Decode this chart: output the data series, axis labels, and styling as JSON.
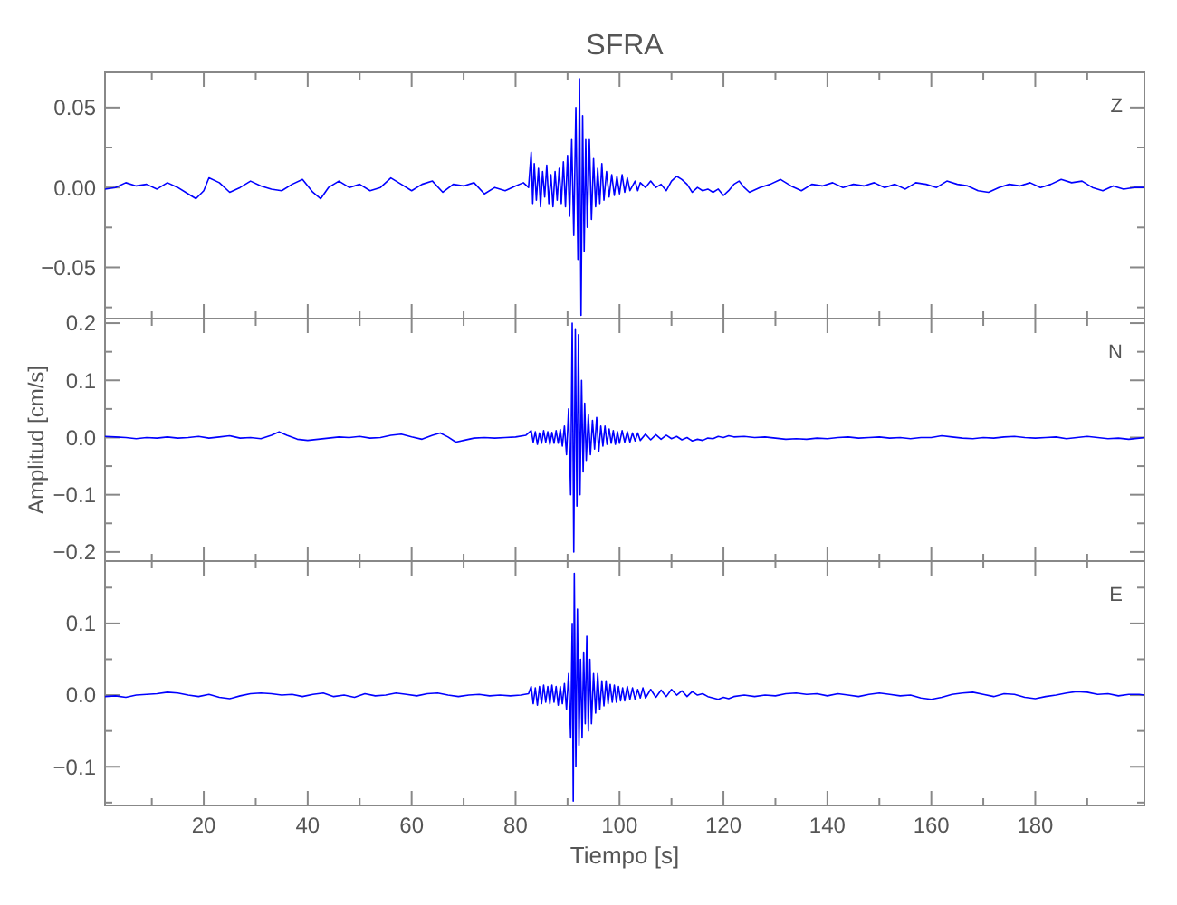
{
  "chart_data": [
    {
      "type": "line",
      "title": "SFRA",
      "annotations": [
        "Z"
      ],
      "xlim": [
        1,
        201
      ],
      "ylim": [
        -0.082,
        0.072
      ],
      "xticks": [
        {
          "value": 10,
          "label": null
        },
        20,
        {
          "value": 30,
          "label": null
        },
        40,
        {
          "value": 50,
          "label": null
        },
        60,
        {
          "value": 70,
          "label": null
        },
        80,
        {
          "value": 90,
          "label": null
        },
        100,
        {
          "value": 110,
          "label": null
        },
        120,
        {
          "value": 130,
          "label": null
        },
        140,
        {
          "value": 150,
          "label": null
        },
        160,
        {
          "value": 170,
          "label": null
        },
        180,
        {
          "value": 190,
          "label": null
        }
      ],
      "yticks": [
        {
          "value": -0.075,
          "label": null
        },
        {
          "value": -0.05,
          "label": "−0.05"
        },
        {
          "value": -0.025,
          "label": null
        },
        {
          "value": 0,
          "label": "0.00"
        },
        {
          "value": 0.025,
          "label": null
        },
        0.05
      ],
      "tick_labels": "y",
      "series": [
        {
          "color": "#0000ff",
          "x": [
            1,
            3,
            5,
            7,
            9,
            11,
            13,
            15,
            17,
            18.5,
            20,
            21,
            23,
            25,
            27,
            29,
            31,
            33,
            35,
            37,
            39,
            41,
            42.5,
            44,
            46,
            48,
            50,
            52,
            54,
            56,
            58,
            60,
            62,
            64,
            66,
            68,
            70,
            72,
            74,
            76,
            78,
            80,
            81.5,
            82.5,
            83,
            83.3,
            83.6,
            84,
            84.4,
            84.8,
            85.2,
            85.6,
            86,
            86.4,
            86.8,
            87.2,
            87.6,
            88,
            88.4,
            88.8,
            89.2,
            89.6,
            90,
            90.4,
            90.8,
            91.2,
            91.6,
            92,
            92.3,
            92.6,
            92.9,
            93.2,
            93.5,
            93.8,
            94.2,
            94.6,
            95,
            95.4,
            95.8,
            96.2,
            96.6,
            97,
            97.5,
            98,
            98.5,
            99,
            99.5,
            100,
            100.5,
            101,
            101.5,
            102,
            103,
            103.5,
            104,
            105,
            106,
            107,
            108,
            109,
            110,
            111,
            112,
            113,
            114,
            115,
            116,
            117,
            118,
            119,
            120,
            121,
            122,
            123,
            124,
            125,
            127,
            129,
            131,
            133,
            135,
            137,
            139,
            141,
            143,
            145,
            147,
            149,
            151,
            153,
            155,
            157,
            159,
            161,
            163,
            165,
            167,
            169,
            171,
            173,
            175,
            177,
            179,
            181,
            183,
            185,
            187,
            189,
            191,
            193,
            195,
            197,
            199,
            201
          ],
          "values": [
            -0.001,
            0.0,
            0.003,
            0.001,
            0.002,
            -0.001,
            0.003,
            0.0,
            -0.004,
            -0.007,
            -0.002,
            0.006,
            0.003,
            -0.003,
            0.0,
            0.004,
            0.001,
            -0.001,
            -0.002,
            0.002,
            0.005,
            -0.003,
            -0.007,
            0.0,
            0.004,
            0.0,
            0.002,
            -0.002,
            0.0,
            0.006,
            0.002,
            -0.002,
            0.002,
            0.004,
            -0.003,
            0.002,
            0.001,
            0.003,
            -0.004,
            0.0,
            -0.002,
            0.001,
            0.003,
            0.0,
            0.022,
            -0.01,
            0.015,
            -0.008,
            0.012,
            -0.012,
            0.01,
            -0.006,
            0.014,
            -0.01,
            0.008,
            -0.012,
            0.01,
            -0.008,
            0.012,
            -0.01,
            0.016,
            -0.012,
            0.02,
            -0.018,
            0.03,
            -0.03,
            0.05,
            -0.045,
            0.068,
            -0.08,
            0.045,
            -0.04,
            0.03,
            -0.025,
            0.03,
            -0.02,
            0.018,
            -0.012,
            0.012,
            -0.01,
            0.015,
            -0.008,
            0.01,
            -0.006,
            0.008,
            -0.005,
            0.007,
            -0.004,
            0.008,
            -0.003,
            0.006,
            -0.002,
            0.004,
            -0.002,
            0.003,
            0.0,
            0.004,
            0.0,
            0.002,
            -0.002,
            0.004,
            0.007,
            0.005,
            0.002,
            -0.003,
            0.0,
            -0.002,
            -0.001,
            -0.003,
            -0.001,
            -0.005,
            -0.002,
            0.002,
            0.004,
            0.0,
            -0.003,
            0.0,
            0.002,
            0.005,
            0.001,
            -0.002,
            0.002,
            0.001,
            0.003,
            0.0,
            0.002,
            0.001,
            0.003,
            0.0,
            0.002,
            -0.001,
            0.003,
            0.002,
            0.0,
            0.004,
            0.002,
            0.001,
            -0.002,
            -0.003,
            0.0,
            0.002,
            0.001,
            0.003,
            0.0,
            0.002,
            0.005,
            0.003,
            0.004,
            0.0,
            -0.002,
            0.001,
            -0.001,
            0.0,
            0.0
          ]
        }
      ]
    },
    {
      "type": "line",
      "ylabel": "Amplitud [cm/s]",
      "annotations": [
        "N"
      ],
      "xlim": [
        1,
        201
      ],
      "ylim": [
        -0.216,
        0.208
      ],
      "xticks": [
        {
          "value": 10,
          "label": null
        },
        20,
        {
          "value": 30,
          "label": null
        },
        40,
        {
          "value": 50,
          "label": null
        },
        60,
        {
          "value": 70,
          "label": null
        },
        80,
        {
          "value": 90,
          "label": null
        },
        100,
        {
          "value": 110,
          "label": null
        },
        120,
        {
          "value": 130,
          "label": null
        },
        140,
        {
          "value": 150,
          "label": null
        },
        160,
        {
          "value": 170,
          "label": null
        },
        180,
        {
          "value": 190,
          "label": null
        }
      ],
      "yticks": [
        {
          "value": -0.2,
          "label": "−0.2"
        },
        {
          "value": -0.15,
          "label": null
        },
        {
          "value": -0.1,
          "label": "−0.1"
        },
        {
          "value": -0.05,
          "label": null
        },
        {
          "value": 0,
          "label": "0.0"
        },
        {
          "value": 0.05,
          "label": null
        },
        0.1,
        {
          "value": 0.15,
          "label": null
        },
        0.2
      ],
      "tick_labels": "y",
      "series": [
        {
          "color": "#0000ff",
          "x": [
            1,
            3,
            5,
            7,
            9,
            11,
            13,
            15,
            17,
            19,
            21,
            23,
            25,
            27,
            29,
            31,
            33,
            34.5,
            36,
            38,
            40,
            42,
            44,
            46,
            48,
            50,
            52,
            54,
            56,
            58,
            60,
            62,
            64,
            65.5,
            67,
            68.5,
            70,
            72,
            74,
            76,
            78,
            80,
            82,
            83,
            83.4,
            83.8,
            84.2,
            84.6,
            85,
            85.4,
            85.8,
            86.2,
            86.6,
            87,
            87.4,
            87.8,
            88.2,
            88.6,
            89,
            89.4,
            89.8,
            90.2,
            90.6,
            90.9,
            91.2,
            91.5,
            91.8,
            92.1,
            92.4,
            92.7,
            93,
            93.3,
            93.6,
            94,
            94.4,
            94.8,
            95.2,
            95.6,
            96,
            96.4,
            96.8,
            97.2,
            97.6,
            98,
            98.4,
            98.8,
            99.2,
            99.6,
            100,
            100.5,
            101,
            101.5,
            102,
            102.5,
            103,
            103.5,
            104,
            105,
            106,
            107,
            108,
            109,
            110,
            111,
            112,
            113,
            114,
            115,
            116,
            117,
            118,
            119,
            120,
            121,
            122,
            124,
            126,
            128,
            130,
            132,
            134,
            136,
            138,
            140,
            142,
            144,
            146,
            148,
            150,
            152,
            154,
            156,
            158,
            160,
            162,
            164,
            166,
            168,
            170,
            172,
            174,
            176,
            178,
            180,
            182,
            184,
            186,
            188,
            190,
            192,
            194,
            196,
            198,
            200,
            201
          ],
          "values": [
            0.002,
            0.001,
            0.0,
            -0.002,
            0.0,
            -0.001,
            0.001,
            -0.001,
            0.0,
            0.002,
            -0.001,
            0.001,
            0.003,
            -0.001,
            0.0,
            -0.002,
            0.004,
            0.01,
            0.004,
            -0.003,
            -0.005,
            -0.003,
            -0.001,
            0.001,
            0.0,
            0.002,
            -0.001,
            0.0,
            0.004,
            0.006,
            0.001,
            -0.003,
            0.004,
            0.008,
            0.001,
            -0.008,
            -0.005,
            -0.001,
            0.0,
            -0.001,
            0.0,
            0.001,
            0.004,
            0.012,
            -0.008,
            0.01,
            -0.012,
            0.008,
            -0.01,
            0.012,
            -0.008,
            0.01,
            -0.012,
            0.009,
            -0.01,
            0.012,
            -0.01,
            0.014,
            -0.015,
            0.02,
            -0.03,
            0.05,
            -0.1,
            0.2,
            -0.2,
            0.19,
            -0.12,
            0.18,
            -0.1,
            0.1,
            -0.06,
            0.06,
            -0.04,
            0.04,
            -0.03,
            0.03,
            -0.02,
            0.035,
            -0.025,
            0.02,
            -0.015,
            0.02,
            -0.012,
            0.015,
            -0.01,
            0.012,
            -0.012,
            0.01,
            -0.01,
            0.012,
            -0.008,
            0.01,
            -0.008,
            0.008,
            -0.006,
            0.008,
            -0.005,
            0.006,
            -0.004,
            0.005,
            -0.003,
            0.004,
            -0.002,
            0.002,
            -0.004,
            0.0,
            -0.006,
            -0.003,
            -0.005,
            -0.001,
            -0.002,
            0.002,
            0.0,
            0.003,
            0.001,
            0.002,
            0.0,
            0.001,
            -0.001,
            -0.003,
            -0.002,
            -0.003,
            -0.001,
            -0.002,
            0.0,
            0.001,
            -0.001,
            0.0,
            0.001,
            -0.001,
            0.0,
            -0.002,
            0.0,
            0.0,
            0.003,
            0.001,
            -0.001,
            -0.002,
            0.0,
            -0.001,
            0.001,
            0.002,
            0.0,
            -0.001,
            0.0,
            0.001,
            -0.002,
            0.0,
            0.002,
            0.0,
            -0.002,
            -0.001,
            -0.003,
            -0.001,
            0.0
          ]
        }
      ]
    },
    {
      "type": "line",
      "xlabel": "Tiempo [s]",
      "annotations": [
        "E"
      ],
      "xlim": [
        1,
        201
      ],
      "ylim": [
        -0.154,
        0.187
      ],
      "xticks": [
        {
          "value": 10,
          "label": null
        },
        20,
        {
          "value": 30,
          "label": null
        },
        40,
        {
          "value": 50,
          "label": null
        },
        60,
        {
          "value": 70,
          "label": null
        },
        80,
        {
          "value": 90,
          "label": null
        },
        100,
        {
          "value": 110,
          "label": null
        },
        120,
        {
          "value": 130,
          "label": null
        },
        140,
        {
          "value": 150,
          "label": null
        },
        160,
        {
          "value": 170,
          "label": null
        },
        180,
        {
          "value": 190,
          "label": null
        }
      ],
      "yticks": [
        {
          "value": -0.15,
          "label": null
        },
        {
          "value": -0.1,
          "label": "−0.1"
        },
        {
          "value": -0.05,
          "label": null
        },
        {
          "value": 0,
          "label": "0.0"
        },
        {
          "value": 0.05,
          "label": null
        },
        0.1,
        {
          "value": 0.15,
          "label": null
        }
      ],
      "series": [
        {
          "color": "#0000ff",
          "x": [
            1,
            3,
            5,
            7,
            9,
            11,
            13,
            15,
            17,
            19,
            21,
            23,
            25,
            27,
            29,
            31,
            33,
            35,
            37,
            39,
            41,
            43,
            45,
            47,
            49,
            51,
            53,
            55,
            57,
            59,
            61,
            63,
            65,
            67,
            69,
            71,
            73,
            75,
            77,
            79,
            81,
            82.5,
            83,
            83.4,
            83.8,
            84.2,
            84.6,
            85,
            85.4,
            85.8,
            86.2,
            86.6,
            87,
            87.4,
            87.8,
            88.2,
            88.6,
            89,
            89.4,
            89.8,
            90.2,
            90.6,
            90.9,
            91.1,
            91.3,
            91.6,
            91.9,
            92.2,
            92.5,
            92.8,
            93.1,
            93.4,
            93.7,
            94,
            94.3,
            94.6,
            95,
            95.4,
            95.8,
            96.2,
            96.6,
            97,
            97.4,
            97.8,
            98.2,
            98.6,
            99,
            99.4,
            99.8,
            100.2,
            100.6,
            101,
            101.5,
            102,
            102.5,
            103,
            103.5,
            104,
            104.5,
            105,
            106,
            107,
            108,
            109,
            110,
            111,
            112,
            113,
            114,
            115,
            116,
            117,
            118,
            119,
            120,
            121,
            122,
            124,
            126,
            128,
            130,
            132,
            134,
            136,
            138,
            140,
            142,
            144,
            146,
            148,
            150,
            152,
            154,
            156,
            158,
            160,
            162,
            164,
            166,
            168,
            170,
            172,
            174,
            176,
            178,
            180,
            182,
            184,
            186,
            188,
            190,
            192,
            194,
            196,
            198,
            200,
            201
          ],
          "values": [
            -0.002,
            -0.001,
            -0.003,
            0.0,
            0.001,
            0.002,
            0.004,
            0.003,
            0.0,
            -0.002,
            0.001,
            -0.003,
            -0.005,
            -0.001,
            0.002,
            0.003,
            0.002,
            0.0,
            0.001,
            -0.002,
            0.001,
            0.003,
            -0.002,
            0.0,
            -0.003,
            0.002,
            -0.001,
            0.0,
            0.003,
            0.001,
            -0.001,
            0.002,
            0.003,
            0.0,
            -0.002,
            0.0,
            0.001,
            -0.001,
            0.0,
            -0.001,
            0.0,
            0.002,
            0.012,
            -0.012,
            0.01,
            -0.014,
            0.012,
            -0.012,
            0.014,
            -0.01,
            0.012,
            -0.012,
            0.014,
            -0.01,
            0.012,
            -0.014,
            0.012,
            -0.012,
            0.016,
            -0.02,
            0.03,
            -0.06,
            0.1,
            -0.148,
            0.17,
            -0.1,
            0.12,
            -0.07,
            0.05,
            -0.06,
            0.06,
            -0.04,
            0.082,
            -0.05,
            0.05,
            -0.04,
            0.03,
            -0.025,
            0.03,
            -0.02,
            0.02,
            -0.015,
            0.02,
            -0.012,
            0.015,
            -0.01,
            0.014,
            -0.01,
            0.012,
            -0.008,
            0.01,
            -0.008,
            0.012,
            -0.006,
            0.01,
            -0.006,
            0.008,
            -0.004,
            0.01,
            -0.004,
            0.008,
            -0.003,
            0.007,
            -0.002,
            0.008,
            0.0,
            0.006,
            -0.002,
            0.005,
            0.0,
            0.002,
            -0.002,
            -0.004,
            -0.006,
            -0.003,
            -0.005,
            -0.002,
            0.0,
            -0.002,
            0.0,
            -0.001,
            0.002,
            0.003,
            0.001,
            0.002,
            -0.001,
            0.002,
            0.0,
            -0.002,
            0.001,
            0.003,
            0.001,
            -0.001,
            0.0,
            -0.004,
            -0.006,
            -0.003,
            0.001,
            0.003,
            0.004,
            0.001,
            -0.002,
            0.002,
            0.001,
            -0.003,
            -0.005,
            -0.002,
            0.0,
            0.003,
            0.005,
            0.004,
            0.001,
            0.002,
            -0.001,
            0.001,
            0.001,
            0.0
          ]
        }
      ]
    }
  ]
}
